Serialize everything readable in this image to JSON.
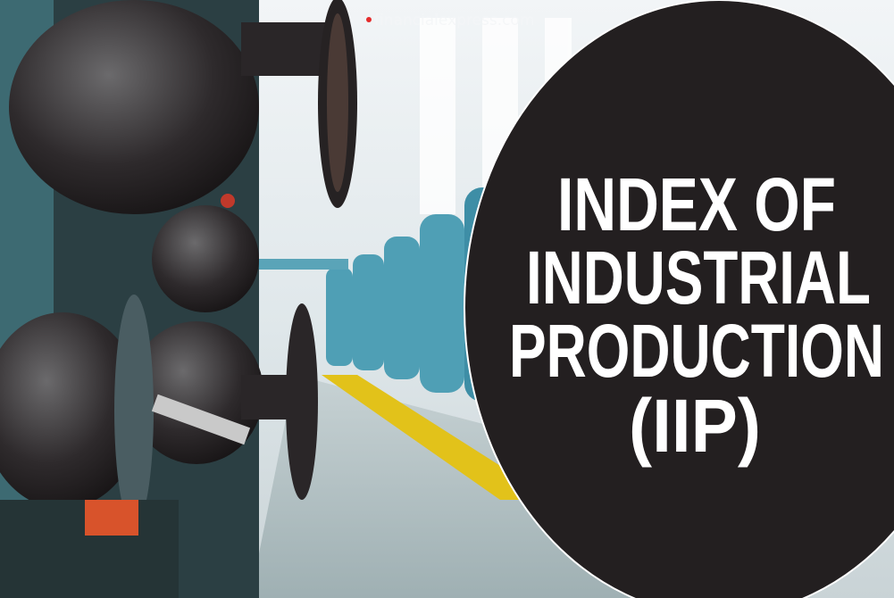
{
  "watermark": "financialexpress.com",
  "headline": {
    "lines": [
      "INDEX OF",
      "INDUSTRIAL",
      "PRODUCTION",
      "(IIP)"
    ]
  }
}
